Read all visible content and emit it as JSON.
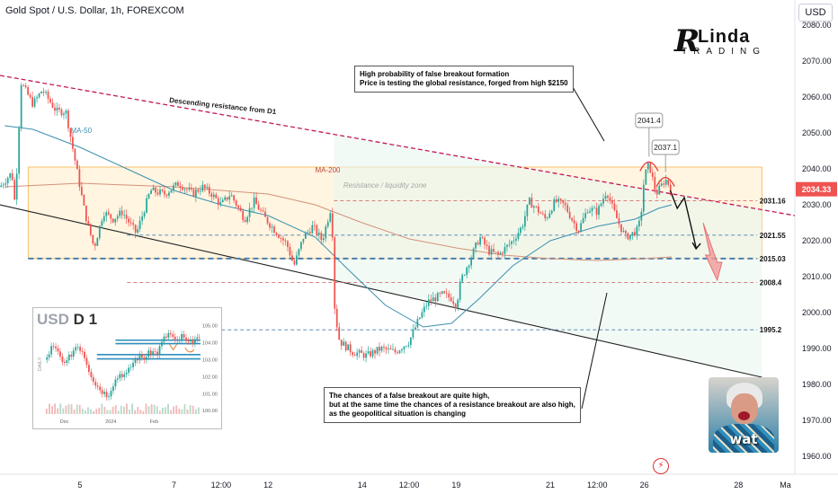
{
  "header": {
    "title": "Gold Spot / U.S. Dollar, 1h, FOREXCOM",
    "currency": "USD"
  },
  "logo": {
    "initial": "R",
    "top": "Linda",
    "bottom": "TRADING"
  },
  "colors": {
    "up": "#26a69a",
    "down": "#ef5350",
    "resistance": "#c2185b",
    "zone": "#f6c26b",
    "ma50": "#3c8fb0",
    "ma200": "#d4927a",
    "price_tag": "#ef5350"
  },
  "chart_data": {
    "type": "candlestick",
    "ylim": [
      1955,
      2087
    ],
    "y_ticks": [
      1960,
      1970,
      1980,
      1990,
      2000,
      2010,
      2020,
      2030,
      2040,
      2050,
      2060,
      2070,
      2080
    ],
    "y_tick_labels": [
      "1960.00",
      "1970.00",
      "1980.00",
      "1990.00",
      "2000.00",
      "2010.00",
      "2020.00",
      "2030.00",
      "2040.00",
      "2050.00",
      "2060.00",
      "2070.00",
      "2080.00"
    ],
    "x_ticks": [
      {
        "label": "5",
        "x": 5
      },
      {
        "label": "7",
        "x": 7
      },
      {
        "label": "12:00",
        "x": 8
      },
      {
        "label": "12",
        "x": 9
      },
      {
        "label": "14",
        "x": 11
      },
      {
        "label": "12:00",
        "x": 12
      },
      {
        "label": "19",
        "x": 13
      },
      {
        "label": "21",
        "x": 15
      },
      {
        "label": "12:00",
        "x": 16
      },
      {
        "label": "26",
        "x": 17
      },
      {
        "label": "28",
        "x": 19
      },
      {
        "label": "Ma",
        "x": 20
      }
    ],
    "xlim": [
      3.3,
      20.2
    ],
    "path": [
      [
        3.3,
        2035
      ],
      [
        3.55,
        2039
      ],
      [
        3.62,
        2030
      ],
      [
        3.75,
        2064
      ],
      [
        4.0,
        2058
      ],
      [
        4.2,
        2062
      ],
      [
        4.5,
        2056
      ],
      [
        4.7,
        2056
      ],
      [
        4.9,
        2042
      ],
      [
        5.1,
        2028
      ],
      [
        5.3,
        2018
      ],
      [
        5.5,
        2028
      ],
      [
        5.7,
        2026
      ],
      [
        5.9,
        2028
      ],
      [
        6.2,
        2022
      ],
      [
        6.5,
        2034
      ],
      [
        6.8,
        2033
      ],
      [
        7.1,
        2036
      ],
      [
        7.4,
        2033
      ],
      [
        7.6,
        2035
      ],
      [
        7.8,
        2033
      ],
      [
        8.0,
        2030
      ],
      [
        8.2,
        2033
      ],
      [
        8.5,
        2026
      ],
      [
        8.7,
        2031
      ],
      [
        8.95,
        2026
      ],
      [
        9.2,
        2022
      ],
      [
        9.4,
        2019
      ],
      [
        9.55,
        2013
      ],
      [
        9.75,
        2021
      ],
      [
        9.95,
        2024
      ],
      [
        10.15,
        2020
      ],
      [
        10.35,
        2030
      ],
      [
        10.42,
        2000
      ],
      [
        10.52,
        1992
      ],
      [
        10.8,
        1989
      ],
      [
        11.1,
        1988
      ],
      [
        11.4,
        1990
      ],
      [
        11.7,
        1989
      ],
      [
        12.0,
        1992
      ],
      [
        12.2,
        1998
      ],
      [
        12.4,
        2003
      ],
      [
        12.7,
        2005
      ],
      [
        12.9,
        2004
      ],
      [
        13.0,
        2002
      ],
      [
        13.1,
        2009
      ],
      [
        13.3,
        2015
      ],
      [
        13.5,
        2021
      ],
      [
        13.7,
        2017
      ],
      [
        13.9,
        2016
      ],
      [
        14.2,
        2020
      ],
      [
        14.4,
        2024
      ],
      [
        14.55,
        2031
      ],
      [
        14.7,
        2029
      ],
      [
        14.9,
        2026
      ],
      [
        15.1,
        2031
      ],
      [
        15.3,
        2030
      ],
      [
        15.5,
        2025
      ],
      [
        15.6,
        2023
      ],
      [
        15.8,
        2029
      ],
      [
        16.0,
        2028
      ],
      [
        16.2,
        2034
      ],
      [
        16.3,
        2030
      ],
      [
        16.45,
        2025
      ],
      [
        16.6,
        2021
      ],
      [
        16.75,
        2022
      ],
      [
        16.85,
        2023
      ],
      [
        16.92,
        2026
      ],
      [
        17.0,
        2038
      ],
      [
        17.1,
        2041.4
      ],
      [
        17.25,
        2033
      ],
      [
        17.45,
        2037.1
      ],
      [
        17.55,
        2035
      ],
      [
        17.58,
        2034.33
      ]
    ],
    "ma50": [
      [
        3.4,
        2052
      ],
      [
        4,
        2051
      ],
      [
        5,
        2046
      ],
      [
        6,
        2040
      ],
      [
        7,
        2034
      ],
      [
        8,
        2030
      ],
      [
        9,
        2027
      ],
      [
        10,
        2021
      ],
      [
        10.7,
        2012
      ],
      [
        11.5,
        2002
      ],
      [
        12.3,
        1996
      ],
      [
        12.9,
        1997
      ],
      [
        13.5,
        2004
      ],
      [
        14.2,
        2013
      ],
      [
        15,
        2020
      ],
      [
        16,
        2024
      ],
      [
        16.8,
        2026
      ],
      [
        17.3,
        2029
      ],
      [
        17.58,
        2030
      ]
    ],
    "ma200": [
      [
        3.4,
        2035
      ],
      [
        5,
        2036
      ],
      [
        6,
        2035.5
      ],
      [
        7,
        2035
      ],
      [
        8,
        2034
      ],
      [
        9,
        2033
      ],
      [
        10,
        2030
      ],
      [
        11,
        2025
      ],
      [
        12,
        2020.5
      ],
      [
        13,
        2018
      ],
      [
        14,
        2016
      ],
      [
        15,
        2015
      ],
      [
        16,
        2014.5
      ],
      [
        17,
        2015
      ],
      [
        17.58,
        2015.5
      ]
    ],
    "levels": [
      {
        "label": "2031.16",
        "value": 2031.16,
        "style": "dashed-red"
      },
      {
        "label": "2021.55",
        "value": 2021.55,
        "style": "dashed-blue"
      },
      {
        "label": "2015.03",
        "value": 2015.03,
        "style": "dashed-blue-bold"
      },
      {
        "label": "2008.4",
        "value": 2008.4,
        "style": "dashed-red"
      },
      {
        "label": "1995.2",
        "value": 1995.2,
        "style": "dashed-blue"
      }
    ],
    "current_price": {
      "label": "2034.33",
      "value": 2034.33
    },
    "zone": {
      "label": "Resistance / liquidity zone",
      "x0": 3.9,
      "x1": 19.5,
      "y0": 2015.03,
      "y1": 2040.5
    },
    "resistance_line": {
      "label": "Descending resistance from D1",
      "p0": [
        3.3,
        2066
      ],
      "p1": [
        20.2,
        2027
      ]
    },
    "support_line": {
      "p0": [
        3.3,
        2030
      ],
      "p1": [
        19.5,
        1982
      ]
    },
    "ma_labels": [
      {
        "label": "MA-50",
        "x": 4.8,
        "y": 2050
      },
      {
        "label": "MA-200",
        "x": 10.0,
        "y": 2039
      }
    ],
    "peaks": [
      {
        "label": "2041.4",
        "x": 17.1,
        "y": 2041.4
      },
      {
        "label": "2037.1",
        "x": 17.45,
        "y": 2037.1
      }
    ]
  },
  "annotations": {
    "top": [
      "High probability of false breakout formation",
      "Price is testing the global resistance, forged from high $2150"
    ],
    "bottom": [
      "The chances of a false breakout are quite high,",
      "but at the same time the chances of a resistance breakout are also high,",
      "as the geopolitical situation is changing"
    ]
  },
  "avatar": {
    "word": "wat"
  },
  "inset": {
    "title": "USD",
    "timeframe": "D 1",
    "side_label": "DAILY",
    "x_labels": [
      "Dec",
      "2024",
      "Feb"
    ],
    "y_labels": [
      "105.00",
      "104.00",
      "103.00",
      "102.00",
      "101.00",
      "100.00"
    ],
    "path": [
      [
        0.0,
        103.0
      ],
      [
        0.04,
        103.8
      ],
      [
        0.08,
        103.4
      ],
      [
        0.12,
        102.6
      ],
      [
        0.16,
        103.3
      ],
      [
        0.2,
        103.9
      ],
      [
        0.24,
        103.5
      ],
      [
        0.28,
        102.4
      ],
      [
        0.32,
        101.6
      ],
      [
        0.36,
        101.2
      ],
      [
        0.4,
        100.9
      ],
      [
        0.44,
        101.7
      ],
      [
        0.48,
        102.2
      ],
      [
        0.52,
        102.1
      ],
      [
        0.56,
        102.8
      ],
      [
        0.6,
        103.2
      ],
      [
        0.64,
        103.1
      ],
      [
        0.68,
        103.5
      ],
      [
        0.72,
        103.4
      ],
      [
        0.76,
        104.2
      ],
      [
        0.8,
        104.6
      ],
      [
        0.84,
        104.0
      ],
      [
        0.88,
        104.4
      ],
      [
        0.92,
        103.9
      ],
      [
        0.96,
        104.2
      ],
      [
        1.0,
        104.1
      ]
    ],
    "levels": [
      104.15,
      103.95,
      103.3,
      103.05
    ]
  },
  "icons": {
    "flash": "lightning-icon"
  }
}
